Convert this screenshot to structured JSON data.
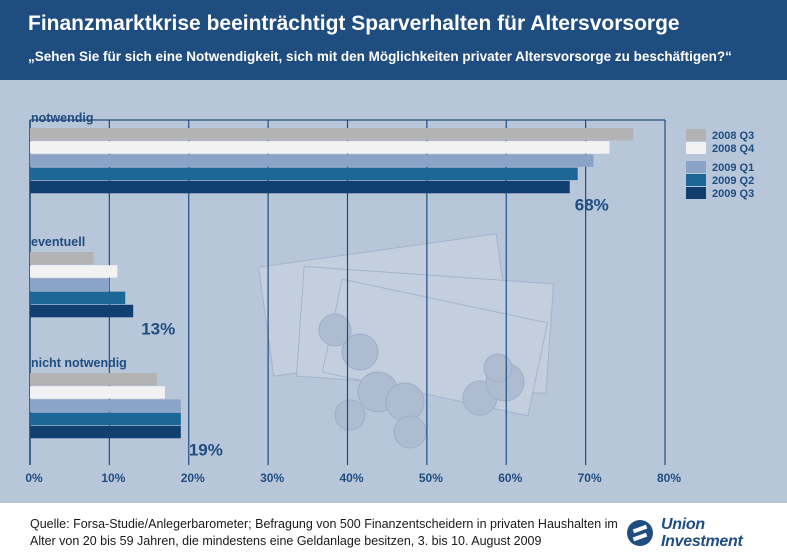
{
  "header": {
    "title": "Finanzmarktkrise beeinträchtigt Sparverhalten für Altersvorsorge",
    "subtitle": "„Sehen Sie für sich eine Notwendigkeit, sich mit den Möglichkeiten privater Altersvorsorge zu beschäftigen?“"
  },
  "chart_data": {
    "type": "bar",
    "orientation": "horizontal",
    "title": "",
    "xlabel": "",
    "ylabel": "",
    "xlim": [
      0,
      80
    ],
    "grid": true,
    "legend_position": "top-right",
    "x_ticks": [
      "0%",
      "10%",
      "20%",
      "30%",
      "40%",
      "50%",
      "60%",
      "70%",
      "80%"
    ],
    "categories": [
      "notwendig",
      "eventuell",
      "nicht notwendig"
    ],
    "category_labels": [
      "68%",
      "13%",
      "19%"
    ],
    "series": [
      {
        "name": "2008 Q3",
        "color": "#b3b3b3",
        "values": [
          76,
          8,
          16
        ]
      },
      {
        "name": "2008 Q4",
        "color": "#f2f2f2",
        "values": [
          73,
          11,
          17
        ]
      },
      {
        "name": "2009 Q1",
        "color": "#8aa4c8",
        "values": [
          71,
          10,
          19
        ]
      },
      {
        "name": "2009 Q2",
        "color": "#1d6796",
        "values": [
          69,
          12,
          19
        ]
      },
      {
        "name": "2009 Q3",
        "color": "#103f70",
        "values": [
          68,
          13,
          19
        ]
      }
    ]
  },
  "footer": {
    "source_line_1": "Quelle: Forsa-Studie/Anlegerbarometer; Befragung von 500 Finanzentscheidern in privaten Haushalten im",
    "source_line_2": "Alter von 20 bis 59 Jahren, die mindestens eine Geldanlage besitzen, 3. bis 10. August 2009",
    "logo_line_1": "Union",
    "logo_line_2": "Investment"
  },
  "colors": {
    "header_bg": "#1f4d80",
    "chart_bg": "#b8c6da",
    "grid": "#1f4d80",
    "label_text": "#1f4d80"
  }
}
